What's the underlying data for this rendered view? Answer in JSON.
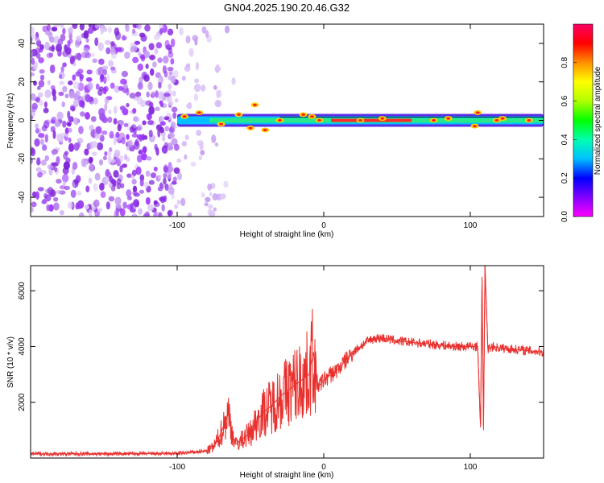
{
  "title": "GN04.2025.190.20.46.G32",
  "colors": {
    "snr_line": "#e8312e",
    "noise": "#8a2be2",
    "axis": "#000000",
    "background": "#ffffff"
  },
  "chart_data": [
    {
      "type": "heatmap",
      "xlabel": "Height of straight line (km)",
      "ylabel": "Frequency (Hz)",
      "xlim": [
        -200,
        150
      ],
      "ylim": [
        -50,
        50
      ],
      "x_ticks": [
        -100,
        0,
        100
      ],
      "y_ticks": [
        -40,
        -20,
        0,
        20,
        40
      ],
      "grid": false,
      "colorbar": {
        "label": "Normalized spectral amplitude",
        "range": [
          0.0,
          1.0
        ],
        "ticks": [
          "0.0",
          "0.2",
          "0.4",
          "0.6",
          "0.8"
        ],
        "palette": [
          "#ff00ff",
          "#8000ff",
          "#0000ff",
          "#00c0ff",
          "#00ffb0",
          "#00ff00",
          "#b0ff00",
          "#ffff00",
          "#ff9000",
          "#ff0000",
          "#ff0066"
        ]
      },
      "signal_band": {
        "frequency_center": 0,
        "starts_at_x": -100,
        "ends_at_x": 150
      }
    },
    {
      "type": "line",
      "xlabel": "Height of straight line (km)",
      "ylabel": "SNR (10 * v/v)",
      "xlim": [
        -200,
        150
      ],
      "ylim": [
        0,
        6900
      ],
      "x_ticks": [
        -100,
        0,
        100
      ],
      "y_ticks": [
        2000,
        4000,
        6000
      ],
      "grid": false,
      "series": [
        {
          "x": [
            -200,
            -150,
            -100,
            -80,
            -75,
            -72,
            -70,
            -68,
            -65,
            -62,
            -60,
            -55,
            -50,
            -45,
            -40,
            -35,
            -30,
            -25,
            -20,
            -15,
            -10,
            -7,
            -5,
            -3,
            0,
            5,
            10,
            15,
            20,
            25,
            30,
            35,
            40,
            50,
            60,
            70,
            80,
            90,
            100,
            105,
            107,
            108,
            109,
            110,
            112,
            115,
            120,
            130,
            140,
            150
          ],
          "values": [
            150,
            150,
            160,
            250,
            400,
            700,
            900,
            1200,
            1600,
            800,
            500,
            700,
            900,
            1400,
            1700,
            1900,
            2200,
            2400,
            2600,
            2800,
            3000,
            3800,
            2700,
            2600,
            2800,
            3000,
            3200,
            3500,
            3800,
            4000,
            4200,
            4300,
            4300,
            4200,
            4150,
            4100,
            4050,
            4000,
            4000,
            4000,
            1100,
            6500,
            1000,
            6900,
            3900,
            4000,
            3950,
            3900,
            3850,
            3800
          ]
        }
      ]
    }
  ]
}
